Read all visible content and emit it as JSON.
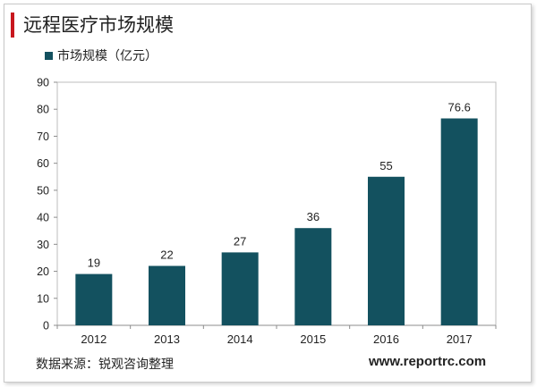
{
  "title": "远程医疗市场规模",
  "legend": {
    "label": "市场规模（亿元）",
    "color": "#13515f"
  },
  "chart_data": {
    "type": "bar",
    "categories": [
      "2012",
      "2013",
      "2014",
      "2015",
      "2016",
      "2017"
    ],
    "series": [
      {
        "name": "市场规模（亿元）",
        "values": [
          19,
          22,
          27,
          36,
          55,
          76.6
        ]
      }
    ],
    "data_labels": [
      "19",
      "22",
      "27",
      "36",
      "55",
      "76.6"
    ],
    "ylim": [
      0,
      90
    ],
    "yticks": [
      0,
      10,
      20,
      30,
      40,
      50,
      60,
      70,
      80,
      90
    ],
    "grid": false,
    "legend_position": "top-left",
    "bar_color": "#13515f"
  },
  "footer": {
    "source": "数据来源：锐观咨询整理",
    "url": "www.reportrc.com"
  },
  "colors": {
    "accent": "#c8171e",
    "bar": "#13515f"
  }
}
